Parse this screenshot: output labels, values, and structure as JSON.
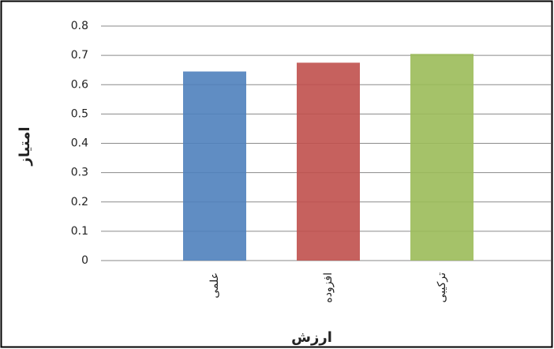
{
  "chart_data": {
    "type": "bar",
    "categories": [
      "علمی",
      "افزوده",
      "ترکیبی"
    ],
    "series": [
      {
        "values": [
          0.645,
          0.675,
          0.705
        ],
        "colors": [
          "#4f81bd",
          "#c0504d",
          "#9bbb59"
        ]
      }
    ],
    "x_label": "ارزش",
    "y_label": "امتیاز",
    "ylim": [
      0,
      0.8
    ],
    "yticks": [
      0,
      0.1,
      0.2,
      0.3,
      0.4,
      0.5,
      0.6,
      0.7,
      0.8
    ],
    "grid": true
  }
}
